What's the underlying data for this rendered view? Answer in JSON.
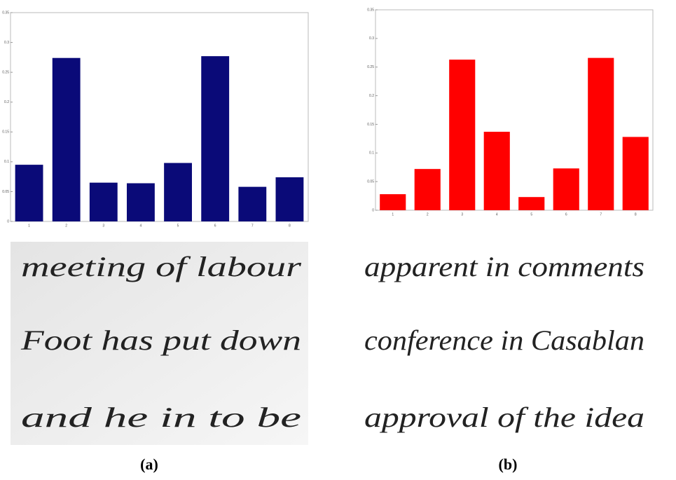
{
  "chart_data": [
    {
      "type": "bar",
      "color": "#0a0a78",
      "categories": [
        "1",
        "2",
        "3",
        "4",
        "5",
        "6",
        "7",
        "8"
      ],
      "values": [
        0.095,
        0.274,
        0.065,
        0.064,
        0.098,
        0.277,
        0.058,
        0.074
      ],
      "ylim": [
        0,
        0.35
      ],
      "yticks": [
        0,
        0.05,
        0.1,
        0.15,
        0.2,
        0.25,
        0.3,
        0.35
      ]
    },
    {
      "type": "bar",
      "color": "#ff0000",
      "categories": [
        "1",
        "2",
        "3",
        "4",
        "5",
        "6",
        "7",
        "8"
      ],
      "values": [
        0.028,
        0.072,
        0.263,
        0.137,
        0.023,
        0.073,
        0.266,
        0.128
      ],
      "ylim": [
        0,
        0.35
      ],
      "yticks": [
        0,
        0.05,
        0.1,
        0.15,
        0.2,
        0.25,
        0.3,
        0.35
      ]
    }
  ],
  "handwriting": [
    {
      "lines": [
        "meeting of labour",
        "Foot has put down",
        "and he in to be"
      ]
    },
    {
      "lines": [
        "apparent in comments",
        "conference in Casablan",
        "approval of the idea"
      ]
    }
  ],
  "captions": [
    "(a)",
    "(b)"
  ]
}
